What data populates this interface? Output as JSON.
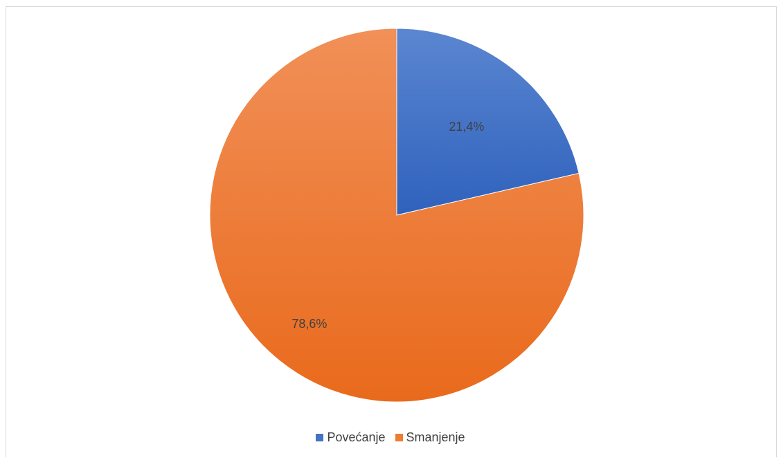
{
  "chart_data": {
    "type": "pie",
    "title": "",
    "legend_position": "bottom",
    "slices": [
      {
        "name": "Povećanje",
        "value": 21.4,
        "label": "21,4%",
        "color": "#4472C4"
      },
      {
        "name": "Smanjenje",
        "value": 78.6,
        "label": "78,6%",
        "color": "#ED7D31"
      }
    ]
  }
}
